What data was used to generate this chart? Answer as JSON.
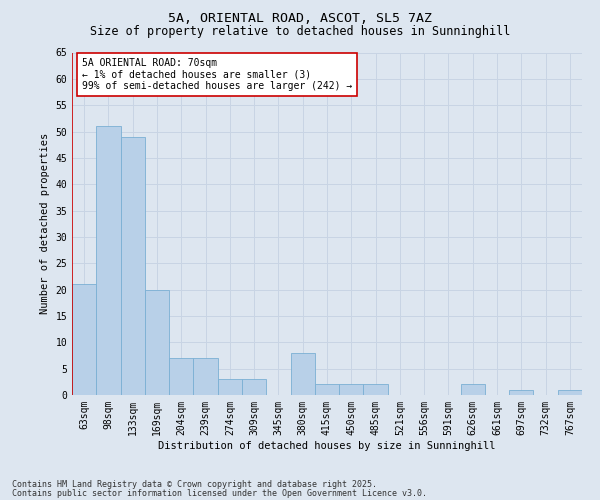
{
  "title1": "5A, ORIENTAL ROAD, ASCOT, SL5 7AZ",
  "title2": "Size of property relative to detached houses in Sunninghill",
  "xlabel": "Distribution of detached houses by size in Sunninghill",
  "ylabel": "Number of detached properties",
  "categories": [
    "63sqm",
    "98sqm",
    "133sqm",
    "169sqm",
    "204sqm",
    "239sqm",
    "274sqm",
    "309sqm",
    "345sqm",
    "380sqm",
    "415sqm",
    "450sqm",
    "485sqm",
    "521sqm",
    "556sqm",
    "591sqm",
    "626sqm",
    "661sqm",
    "697sqm",
    "732sqm",
    "767sqm"
  ],
  "values": [
    21,
    51,
    49,
    20,
    7,
    7,
    3,
    3,
    0,
    8,
    2,
    2,
    2,
    0,
    0,
    0,
    2,
    0,
    1,
    0,
    1
  ],
  "bar_color": "#b8d0e8",
  "bar_edge_color": "#7aafd4",
  "grid_color": "#c8d4e4",
  "background_color": "#dde6f0",
  "annotation_box_color": "#ffffff",
  "annotation_border_color": "#cc0000",
  "annotation_text_line1": "5A ORIENTAL ROAD: 70sqm",
  "annotation_text_line2": "← 1% of detached houses are smaller (3)",
  "annotation_text_line3": "99% of semi-detached houses are larger (242) →",
  "footnote1": "Contains HM Land Registry data © Crown copyright and database right 2025.",
  "footnote2": "Contains public sector information licensed under the Open Government Licence v3.0.",
  "ylim": [
    0,
    65
  ],
  "yticks": [
    0,
    5,
    10,
    15,
    20,
    25,
    30,
    35,
    40,
    45,
    50,
    55,
    60,
    65
  ],
  "title1_fontsize": 9.5,
  "title2_fontsize": 8.5,
  "xlabel_fontsize": 7.5,
  "ylabel_fontsize": 7.5,
  "tick_fontsize": 7,
  "annotation_fontsize": 7
}
